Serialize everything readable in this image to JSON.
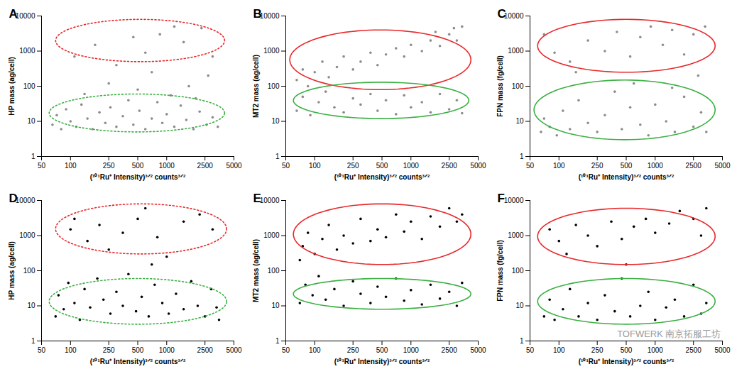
{
  "chart_data": [
    {
      "type": "scatter",
      "panel": "A",
      "xlabel": "(¹⁰¹Ru⁺ Intensity)³ᐟ² counts³ᐟ²",
      "ylabel": "HP mass (ag/cell)",
      "color": "#8c8c8c",
      "log": true,
      "xlim": [
        50,
        5000
      ],
      "xticks": [
        50,
        100,
        250,
        500,
        1000,
        2500,
        5000
      ],
      "ylim": [
        1,
        10000
      ],
      "yticks": [
        1,
        10,
        100,
        1000,
        10000
      ],
      "x": [
        65,
        72,
        80,
        90,
        100,
        115,
        130,
        150,
        170,
        200,
        230,
        260,
        300,
        350,
        400,
        450,
        520,
        600,
        700,
        800,
        900,
        1000,
        1200,
        1400,
        1600,
        1900,
        2200,
        2600,
        3000,
        3400,
        140,
        500,
        1100,
        2000,
        250,
        1700,
        110,
        180,
        300,
        450,
        600,
        850,
        1200,
        1500,
        2300,
        3000,
        700,
        2700
      ],
      "values": [
        8,
        15,
        6,
        22,
        10,
        7,
        30,
        12,
        6,
        18,
        9,
        25,
        7,
        14,
        40,
        8,
        20,
        6,
        12,
        35,
        9,
        16,
        7,
        28,
        11,
        6,
        19,
        8,
        13,
        7,
        60,
        80,
        55,
        45,
        120,
        100,
        700,
        1500,
        400,
        2500,
        900,
        3000,
        5000,
        1800,
        4500,
        700,
        250,
        200
      ],
      "ellipses": [
        {
          "color": "#e8282b",
          "line_style": "dotted",
          "x_range": [
            70,
            4000
          ],
          "y_range": [
            500,
            8000
          ]
        },
        {
          "color": "#3cb043",
          "line_style": "dotted",
          "x_range": [
            60,
            4000
          ],
          "y_range": [
            5,
            60
          ]
        }
      ]
    },
    {
      "type": "scatter",
      "panel": "B",
      "xlabel": "(¹⁰¹Ru⁺ Intensity)³ᐟ² counts³ᐟ²",
      "ylabel": "MT2 mass (ag/cell)",
      "color": "#8c8c8c",
      "log": true,
      "xlim": [
        50,
        5000
      ],
      "xticks": [
        50,
        100,
        250,
        500,
        1000,
        2500,
        5000
      ],
      "ylim": [
        1,
        10000
      ],
      "yticks": [
        1,
        10,
        100,
        1000,
        10000
      ],
      "x": [
        65,
        75,
        90,
        110,
        130,
        160,
        200,
        250,
        300,
        380,
        450,
        550,
        700,
        850,
        1000,
        1300,
        1600,
        2000,
        2500,
        3000,
        3400,
        65,
        75,
        85,
        100,
        120,
        140,
        170,
        200,
        250,
        300,
        380,
        450,
        550,
        700,
        850,
        1000,
        1300,
        1600,
        2000,
        2500,
        3000,
        3400,
        2800,
        1800
      ],
      "values": [
        20,
        50,
        15,
        35,
        70,
        25,
        18,
        45,
        30,
        60,
        20,
        40,
        16,
        55,
        25,
        35,
        18,
        60,
        22,
        40,
        17,
        150,
        300,
        100,
        250,
        500,
        180,
        350,
        700,
        300,
        500,
        900,
        400,
        800,
        1200,
        700,
        1500,
        1000,
        2000,
        1400,
        3000,
        2000,
        5000,
        4500,
        3500
      ],
      "ellipses": [
        {
          "color": "#e8282b",
          "line_style": "solid",
          "x_range": [
            55,
            4200
          ],
          "y_range": [
            80,
            4000
          ]
        },
        {
          "color": "#3cb043",
          "line_style": "solid",
          "x_range": [
            60,
            4000
          ],
          "y_range": [
            12,
            130
          ]
        }
      ]
    },
    {
      "type": "scatter",
      "panel": "C",
      "xlabel": "(¹⁰¹Ru⁺ Intensity)³ᐟ² counts³ᐟ²",
      "ylabel": "FPN mass (fg/cell)",
      "color": "#8c8c8c",
      "log": true,
      "xlim": [
        50,
        5000
      ],
      "xticks": [
        50,
        100,
        250,
        500,
        1000,
        2500,
        5000
      ],
      "ylim": [
        1,
        10000
      ],
      "yticks": [
        1,
        10,
        100,
        1000,
        10000
      ],
      "x": [
        65,
        70,
        80,
        95,
        110,
        130,
        160,
        200,
        250,
        300,
        380,
        450,
        550,
        700,
        850,
        1000,
        1300,
        1600,
        2000,
        2500,
        3000,
        3400,
        600,
        1500,
        70,
        90,
        130,
        200,
        300,
        400,
        550,
        700,
        900,
        1200,
        1500,
        2000,
        2500,
        3300,
        2800,
        150
      ],
      "values": [
        5,
        12,
        7,
        4,
        20,
        6,
        40,
        9,
        5,
        15,
        70,
        6,
        25,
        8,
        4,
        30,
        10,
        5,
        50,
        7,
        18,
        5,
        120,
        90,
        3000,
        900,
        500,
        2000,
        1000,
        3500,
        700,
        2500,
        5000,
        1500,
        4000,
        800,
        3000,
        5000,
        200,
        250
      ],
      "ellipses": [
        {
          "color": "#e8282b",
          "line_style": "solid",
          "x_range": [
            60,
            4200
          ],
          "y_range": [
            250,
            8000
          ]
        },
        {
          "color": "#3cb043",
          "line_style": "solid",
          "x_range": [
            55,
            4200
          ],
          "y_range": [
            3,
            150
          ]
        }
      ]
    },
    {
      "type": "scatter",
      "panel": "D",
      "xlabel": "(¹⁰¹Ru⁺ Intensity)³ᐟ² counts³ᐟ²",
      "ylabel": "HP mass (ag/cell)",
      "color": "#000000",
      "log": true,
      "xlim": [
        50,
        5000
      ],
      "xticks": [
        50,
        100,
        250,
        500,
        1000,
        2500,
        5000
      ],
      "ylim": [
        1,
        10000
      ],
      "yticks": [
        1,
        10,
        100,
        1000,
        10000
      ],
      "x": [
        70,
        75,
        85,
        95,
        110,
        125,
        140,
        160,
        190,
        220,
        260,
        300,
        350,
        400,
        480,
        550,
        650,
        750,
        900,
        1050,
        1250,
        1500,
        1800,
        2100,
        2500,
        2900,
        3300,
        3500,
        100,
        110,
        150,
        200,
        250,
        350,
        500,
        600,
        800,
        1000,
        1500,
        2200,
        3000,
        700
      ],
      "values": [
        5,
        20,
        8,
        45,
        12,
        4,
        30,
        9,
        60,
        15,
        6,
        25,
        10,
        80,
        7,
        18,
        5,
        40,
        12,
        6,
        22,
        8,
        50,
        10,
        5,
        30,
        9,
        4,
        1500,
        3000,
        700,
        2000,
        400,
        1200,
        3000,
        6000,
        900,
        250,
        2500,
        4000,
        1500,
        150
      ],
      "ellipses": [
        {
          "color": "#e8282b",
          "line_style": "dotted",
          "x_range": [
            70,
            4200
          ],
          "y_range": [
            300,
            8000
          ]
        },
        {
          "color": "#3cb043",
          "line_style": "dotted",
          "x_range": [
            60,
            4200
          ],
          "y_range": [
            3,
            60
          ]
        }
      ]
    },
    {
      "type": "scatter",
      "panel": "E",
      "xlabel": "(¹⁰¹Ru⁺ Intensity)³ᐟ² counts³ᐟ²",
      "ylabel": "MT2 mass (ag/cell)",
      "color": "#000000",
      "log": true,
      "xlim": [
        50,
        5000
      ],
      "xticks": [
        50,
        100,
        250,
        500,
        1000,
        2500,
        5000
      ],
      "ylim": [
        1,
        10000
      ],
      "yticks": [
        1,
        10,
        100,
        1000,
        10000
      ],
      "x": [
        70,
        80,
        95,
        110,
        130,
        160,
        200,
        250,
        300,
        380,
        450,
        550,
        700,
        850,
        1000,
        1300,
        1600,
        2000,
        2500,
        3000,
        3400,
        70,
        75,
        85,
        100,
        120,
        140,
        170,
        200,
        250,
        300,
        380,
        450,
        550,
        700,
        850,
        1000,
        1300,
        1600,
        2000,
        2500,
        3000,
        3400
      ],
      "values": [
        12,
        40,
        20,
        70,
        15,
        30,
        10,
        50,
        22,
        12,
        35,
        18,
        60,
        14,
        28,
        11,
        40,
        16,
        25,
        10,
        45,
        200,
        500,
        1200,
        300,
        800,
        2000,
        400,
        1000,
        600,
        3000,
        700,
        1500,
        900,
        4000,
        1300,
        2500,
        800,
        3500,
        1800,
        6000,
        2500,
        4000
      ],
      "ellipses": [
        {
          "color": "#e8282b",
          "line_style": "solid",
          "x_range": [
            60,
            4200
          ],
          "y_range": [
            150,
            8000
          ]
        },
        {
          "color": "#3cb043",
          "line_style": "solid",
          "x_range": [
            60,
            4200
          ],
          "y_range": [
            8,
            60
          ]
        }
      ]
    },
    {
      "type": "scatter",
      "panel": "F",
      "xlabel": "(¹⁰¹Ru⁺ Intensity)³ᐟ² counts³ᐟ²",
      "ylabel": "FPN mass (fg/cell)",
      "color": "#000000",
      "log": true,
      "xlim": [
        50,
        5000
      ],
      "xticks": [
        50,
        100,
        250,
        500,
        1000,
        2500,
        5000
      ],
      "ylim": [
        1,
        10000
      ],
      "yticks": [
        1,
        10,
        100,
        1000,
        10000
      ],
      "x": [
        70,
        80,
        90,
        110,
        130,
        160,
        200,
        250,
        300,
        380,
        450,
        550,
        700,
        850,
        1000,
        1300,
        1600,
        2000,
        2500,
        3000,
        3400,
        500,
        80,
        100,
        120,
        150,
        200,
        250,
        350,
        450,
        600,
        800,
        1000,
        1400,
        1800,
        2500,
        3000,
        3400
      ],
      "values": [
        5,
        15,
        4,
        8,
        30,
        5,
        12,
        4,
        20,
        7,
        60,
        5,
        10,
        25,
        4,
        9,
        15,
        5,
        40,
        6,
        12,
        150,
        1500,
        700,
        300,
        2000,
        1000,
        500,
        2500,
        800,
        1800,
        3000,
        1200,
        2200,
        5000,
        3000,
        1000,
        6000
      ],
      "ellipses": [
        {
          "color": "#e8282b",
          "line_style": "solid",
          "x_range": [
            60,
            4200
          ],
          "y_range": [
            150,
            6000
          ]
        },
        {
          "color": "#3cb043",
          "line_style": "solid",
          "x_range": [
            60,
            4200
          ],
          "y_range": [
            3,
            60
          ]
        }
      ],
      "annotation": "TOFWERK 南京拓服工坊"
    }
  ]
}
